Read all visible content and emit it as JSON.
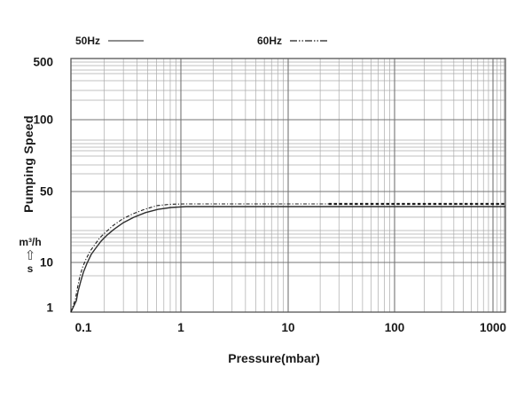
{
  "chart_data": {
    "type": "line",
    "title": "",
    "xlabel": "Pressure(mbar)",
    "ylabel": "Pumping Speed",
    "y_unit_top": "m³/h",
    "y_unit_arrow_icon": "⇧",
    "y_unit_bottom": "s",
    "x_scale": "log",
    "y_scale": "log",
    "xlim": [
      0.1,
      1350
    ],
    "ylim": [
      1,
      500
    ],
    "grid": true,
    "legend_position": "top",
    "x_ticks": [
      {
        "value": 0.1,
        "label": "0.1"
      },
      {
        "value": 1,
        "label": "1"
      },
      {
        "value": 10,
        "label": "10"
      },
      {
        "value": 100,
        "label": "100"
      },
      {
        "value": 1000,
        "label": "1000"
      }
    ],
    "y_ticks": [
      {
        "value": 500,
        "label": "500"
      },
      {
        "value": 100,
        "label": "100"
      },
      {
        "value": 50,
        "label": "50"
      },
      {
        "value": 10,
        "label": "10"
      },
      {
        "value": 1,
        "label": "1"
      }
    ],
    "series": [
      {
        "name": "50Hz",
        "line_style": "solid",
        "color": "#2e2e2e",
        "points": [
          [
            0.1,
            1
          ],
          [
            0.112,
            1.7
          ],
          [
            0.116,
            2.6
          ],
          [
            0.123,
            4.2
          ],
          [
            0.13,
            6.4
          ],
          [
            0.14,
            9.6
          ],
          [
            0.153,
            12
          ],
          [
            0.168,
            13.8
          ],
          [
            0.188,
            16.2
          ],
          [
            0.214,
            18.7
          ],
          [
            0.25,
            21.5
          ],
          [
            0.3,
            24.7
          ],
          [
            0.374,
            27.9
          ],
          [
            0.476,
            31
          ],
          [
            0.62,
            33.4
          ],
          [
            0.815,
            34.8
          ],
          [
            1.12,
            35.5
          ],
          [
            1350,
            35.5
          ]
        ]
      },
      {
        "name": "60Hz",
        "line_style": "dash-dot",
        "color": "#1c1c1c",
        "bold_after_x": 24,
        "points": [
          [
            0.1,
            1
          ],
          [
            0.11,
            1.85
          ],
          [
            0.114,
            2.9
          ],
          [
            0.12,
            5
          ],
          [
            0.127,
            7.8
          ],
          [
            0.137,
            10.8
          ],
          [
            0.15,
            13
          ],
          [
            0.165,
            15
          ],
          [
            0.184,
            17.6
          ],
          [
            0.21,
            20.2
          ],
          [
            0.244,
            23.3
          ],
          [
            0.294,
            26.8
          ],
          [
            0.367,
            30.2
          ],
          [
            0.468,
            33.4
          ],
          [
            0.606,
            36.3
          ],
          [
            0.8,
            37.4
          ],
          [
            1.08,
            37.7
          ],
          [
            24,
            37.7
          ],
          [
            1350,
            37.7
          ]
        ]
      }
    ]
  }
}
